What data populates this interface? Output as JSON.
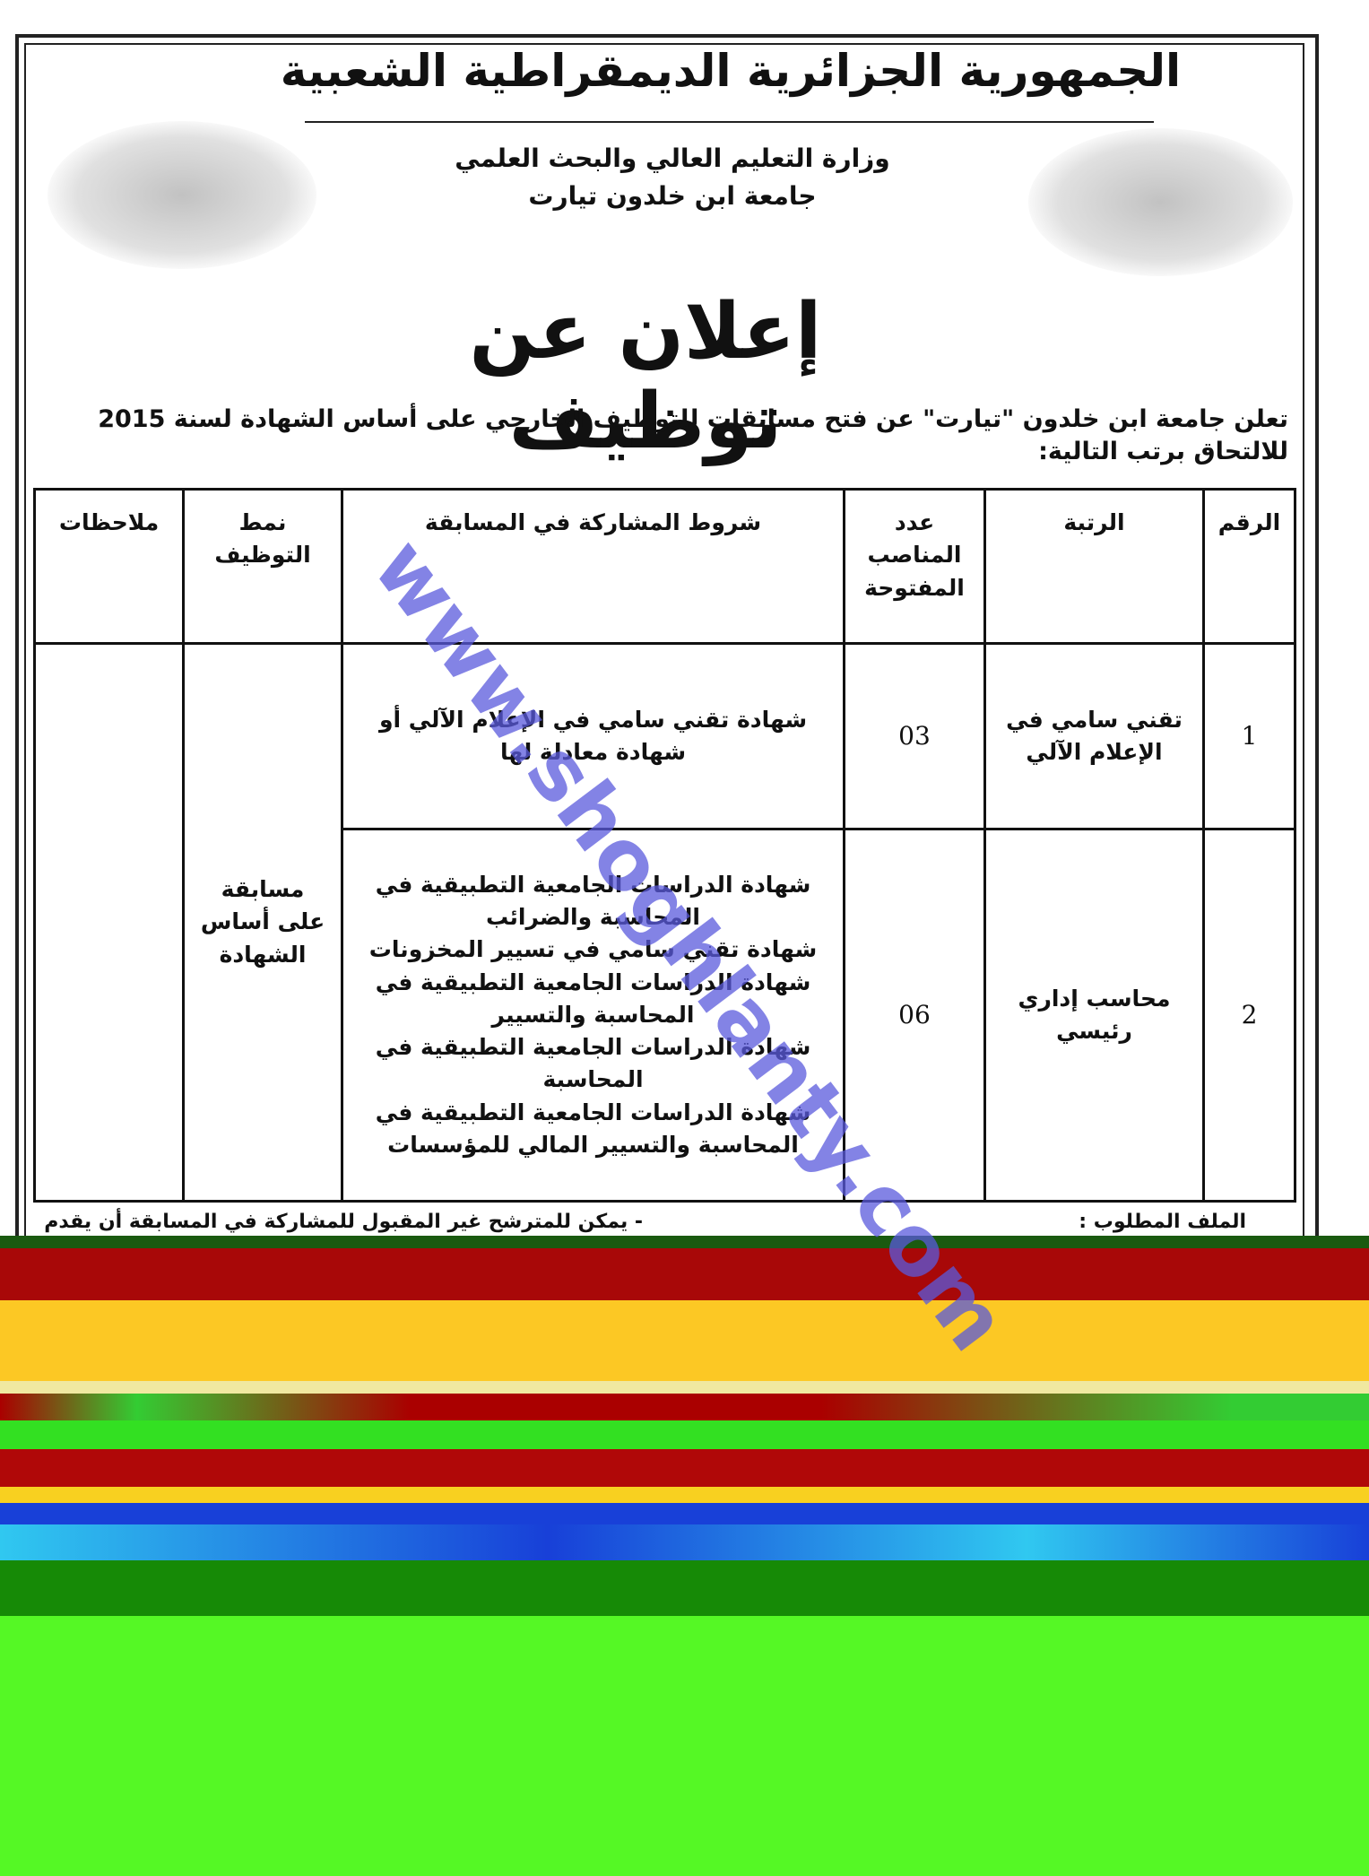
{
  "header": {
    "republic": "الجمهورية الجزائرية الديمقراطية الشعبية",
    "ministry": "وزارة التعليم العالي والبحث العلمي",
    "university": "جامعة ابن خلدون تيارت"
  },
  "title": "إعلان عن توظيف",
  "intro": "تعلن جامعة ابن خلدون \"تيارت\" عن فتح مسابقات للتوظيف الخارجي على أساس الشهادة لسنة 2015 للالتحاق برتب التالية:",
  "table": {
    "columns": [
      "الرقم",
      "الرتبة",
      "عدد المناصب المفتوحة",
      "شروط المشاركة في المسابقة",
      "نمط التوظيف",
      "ملاحظات"
    ],
    "mode": "مسابقة على أساس الشهادة",
    "rows": [
      {
        "number": "1",
        "rank": "تقني سامي في الإعلام الآلي",
        "posts": "03",
        "conditions": [
          "شهادة تقني سامي في الإعلام الآلي أو شهادة معادلة لها"
        ]
      },
      {
        "number": "2",
        "rank": "محاسب إداري رئيسي",
        "posts": "06",
        "conditions": [
          "شهادة الدراسات الجامعية التطبيقية في المحاسبة والضرائب",
          "شهادة تقني سامي في تسيير المخزونات",
          "شهادة الدراسات الجامعية التطبيقية في المحاسبة والتسيير",
          "شهادة الدراسات الجامعية التطبيقية في المحاسبة",
          "شهادة الدراسات الجامعية التطبيقية في المحاسبة والتسيير المالي للمؤسسات"
        ]
      }
    ]
  },
  "file_heading": "الملف المطلوب :",
  "note": "- يمكن للمترشح غير المقبول للمشاركة في المسابقة أن يقدم",
  "watermark": "www.shoghlanty.com"
}
